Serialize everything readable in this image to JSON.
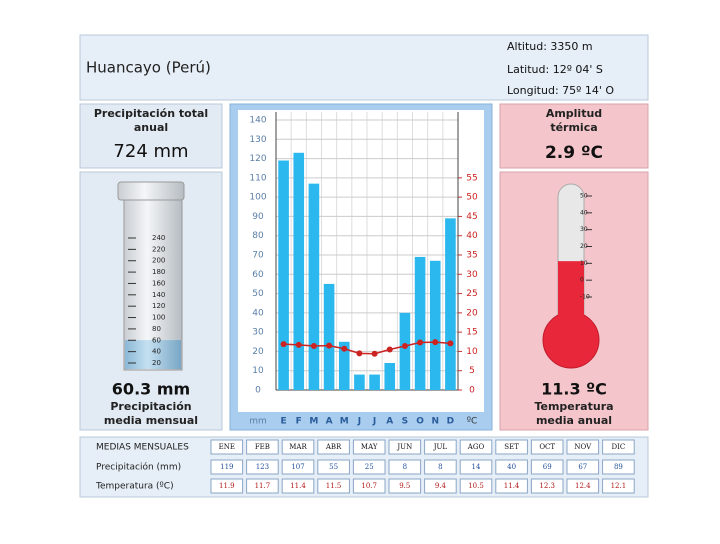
{
  "header": {
    "title": "Huancayo (Perú)",
    "altitude": "Altitud: 3350 m",
    "latitude": "Latitud: 12º 04' S",
    "longitude": "Longitud: 75º 14' O"
  },
  "panels": {
    "total_precip_label": [
      "Precipitación total",
      "anual"
    ],
    "total_precip": "724 mm",
    "mean_precip_label": [
      "Precipitación",
      "media mensual"
    ],
    "amplitude_label": [
      "Amplitud",
      "térmica"
    ],
    "amplitude": "2.9 ºC",
    "mean_temp_label": [
      "Temperatura",
      "media anual"
    ]
  },
  "cylinder": {
    "value": 60.3,
    "value_label": "60.3 mm",
    "ticks": [
      240,
      220,
      200,
      180,
      160,
      140,
      120,
      100,
      80,
      60,
      40,
      20
    ]
  },
  "thermometer": {
    "value": 11.3,
    "value_label": "11.3 ºC",
    "ticks": [
      50,
      40,
      30,
      20,
      10,
      0,
      -10
    ]
  },
  "chart_data": {
    "type": "climograph",
    "categories": [
      "E",
      "F",
      "M",
      "A",
      "M",
      "J",
      "J",
      "A",
      "S",
      "O",
      "N",
      "D"
    ],
    "ylabel": "mm",
    "y2label": "ºC",
    "ylim": [
      0,
      140
    ],
    "yticks": [
      0,
      10,
      20,
      30,
      40,
      50,
      60,
      70,
      80,
      90,
      100,
      110,
      120,
      130,
      140
    ],
    "y2lim": [
      0,
      70
    ],
    "y2ticks": [
      0,
      5,
      10,
      15,
      20,
      25,
      30,
      35,
      40,
      45,
      50,
      55
    ],
    "grid": true,
    "series": [
      {
        "name": "Precipitación (mm)",
        "type": "bar",
        "color": "#2bb8ef",
        "values": [
          119,
          123,
          107,
          55,
          25,
          8,
          8,
          14,
          40,
          69,
          67,
          89
        ]
      },
      {
        "name": "Temperatura (ºC)",
        "type": "line",
        "axis": "y2",
        "color": "#cc2222",
        "values": [
          11.9,
          11.7,
          11.4,
          11.5,
          10.7,
          9.5,
          9.4,
          10.5,
          11.4,
          12.3,
          12.4,
          12.1
        ]
      }
    ]
  },
  "table": {
    "header": "MEDIAS MENSUALES",
    "months": [
      "ENE",
      "FEB",
      "MAR",
      "ABR",
      "MAY",
      "JUN",
      "JUL",
      "AGO",
      "SET",
      "OCT",
      "NOV",
      "DIC"
    ]
  }
}
